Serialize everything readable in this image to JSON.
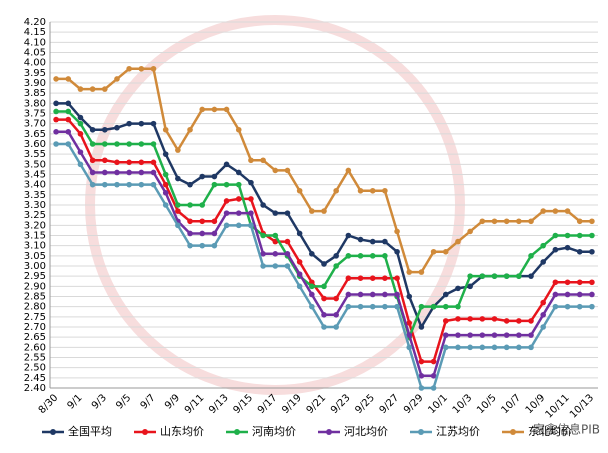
{
  "chart_data": {
    "type": "line",
    "categories": [
      "8/30",
      null,
      "9/1",
      null,
      "9/3",
      null,
      "9/5",
      null,
      "9/7",
      null,
      "9/9",
      null,
      "9/11",
      null,
      "9/13",
      null,
      "9/15",
      null,
      "9/17",
      null,
      "9/19",
      null,
      "9/21",
      null,
      "9/23",
      null,
      "9/25",
      null,
      "9/27",
      null,
      "9/29",
      null,
      "10/1",
      null,
      "10/3",
      null,
      "10/5",
      null,
      "10/7",
      null,
      "10/9",
      null,
      "10/11",
      null,
      "10/13"
    ],
    "series": [
      {
        "name": "全国平均",
        "color": "#1f3864",
        "values": [
          3.8,
          3.8,
          3.73,
          3.67,
          3.67,
          3.68,
          3.7,
          3.7,
          3.7,
          3.55,
          3.43,
          3.4,
          3.44,
          3.44,
          3.5,
          3.46,
          3.41,
          3.3,
          3.26,
          3.26,
          3.16,
          3.06,
          3.01,
          3.05,
          3.15,
          3.13,
          3.12,
          3.12,
          3.07,
          2.85,
          2.7,
          2.8,
          2.86,
          2.89,
          2.9,
          2.95,
          2.95,
          2.95,
          2.95,
          2.95,
          3.02,
          3.08,
          3.09,
          3.07,
          3.07
        ]
      },
      {
        "name": "山东均价",
        "color": "#e8141c",
        "values": [
          3.72,
          3.72,
          3.65,
          3.52,
          3.52,
          3.51,
          3.51,
          3.51,
          3.51,
          3.4,
          3.27,
          3.22,
          3.22,
          3.22,
          3.32,
          3.33,
          3.33,
          3.16,
          3.12,
          3.12,
          3.02,
          2.92,
          2.84,
          2.84,
          2.94,
          2.94,
          2.94,
          2.94,
          2.94,
          2.72,
          2.53,
          2.53,
          2.73,
          2.74,
          2.74,
          2.74,
          2.74,
          2.73,
          2.73,
          2.73,
          2.82,
          2.92,
          2.92,
          2.92,
          2.92
        ]
      },
      {
        "name": "河南均价",
        "color": "#1fb04a",
        "values": [
          3.76,
          3.76,
          3.7,
          3.6,
          3.6,
          3.6,
          3.6,
          3.6,
          3.6,
          3.45,
          3.3,
          3.3,
          3.3,
          3.4,
          3.4,
          3.4,
          3.2,
          3.15,
          3.15,
          3.05,
          2.95,
          2.9,
          2.9,
          3.0,
          3.05,
          3.05,
          3.05,
          3.05,
          2.85,
          2.65,
          2.8,
          2.8,
          2.8,
          2.8,
          2.95,
          2.95,
          2.95,
          2.95,
          2.95,
          3.05,
          3.1,
          3.15,
          3.15,
          3.15,
          3.15
        ]
      },
      {
        "name": "河北均价",
        "color": "#7030a0",
        "values": [
          3.66,
          3.66,
          3.56,
          3.46,
          3.46,
          3.46,
          3.46,
          3.46,
          3.46,
          3.36,
          3.22,
          3.16,
          3.16,
          3.16,
          3.26,
          3.26,
          3.26,
          3.06,
          3.06,
          3.06,
          2.96,
          2.86,
          2.76,
          2.76,
          2.86,
          2.86,
          2.86,
          2.86,
          2.86,
          2.66,
          2.46,
          2.46,
          2.66,
          2.66,
          2.66,
          2.66,
          2.66,
          2.66,
          2.66,
          2.66,
          2.76,
          2.86,
          2.86,
          2.86,
          2.86
        ]
      },
      {
        "name": "江苏均价",
        "color": "#5b9bb5",
        "values": [
          3.6,
          3.6,
          3.5,
          3.4,
          3.4,
          3.4,
          3.4,
          3.4,
          3.4,
          3.3,
          3.2,
          3.1,
          3.1,
          3.1,
          3.2,
          3.2,
          3.2,
          3.0,
          3.0,
          3.0,
          2.9,
          2.8,
          2.7,
          2.7,
          2.8,
          2.8,
          2.8,
          2.8,
          2.8,
          2.6,
          2.4,
          2.4,
          2.6,
          2.6,
          2.6,
          2.6,
          2.6,
          2.6,
          2.6,
          2.6,
          2.7,
          2.8,
          2.8,
          2.8,
          2.8
        ]
      },
      {
        "name": "东北均价",
        "color": "#d08a3a",
        "values": [
          3.92,
          3.92,
          3.87,
          3.87,
          3.87,
          3.92,
          3.97,
          3.97,
          3.97,
          3.67,
          3.57,
          3.67,
          3.77,
          3.77,
          3.77,
          3.67,
          3.52,
          3.52,
          3.47,
          3.47,
          3.37,
          3.27,
          3.27,
          3.37,
          3.47,
          3.37,
          3.37,
          3.37,
          3.17,
          2.97,
          2.97,
          3.07,
          3.07,
          3.12,
          3.17,
          3.22,
          3.22,
          3.22,
          3.22,
          3.22,
          3.27,
          3.27,
          3.27,
          3.22,
          3.22
        ]
      }
    ],
    "ylim": [
      2.4,
      4.2
    ],
    "yticks": [
      {
        "value": 2.4,
        "label": "2.40"
      },
      {
        "value": 2.45,
        "label": "2.45"
      },
      {
        "value": 2.5,
        "label": "2.50"
      },
      {
        "value": 2.55,
        "label": "2.55"
      },
      {
        "value": 2.6,
        "label": "2.60"
      },
      {
        "value": 2.65,
        "label": "2.65"
      },
      {
        "value": 2.7,
        "label": "2.70"
      },
      {
        "value": 2.75,
        "label": "2.75"
      },
      {
        "value": 2.8,
        "label": "2.80"
      },
      {
        "value": 2.85,
        "label": "2.85"
      },
      {
        "value": 2.9,
        "label": "2.90"
      },
      {
        "value": 2.95,
        "label": "2.95"
      },
      {
        "value": 3.0,
        "label": "3.00"
      },
      {
        "value": 3.05,
        "label": "3.05"
      },
      {
        "value": 3.1,
        "label": "3.10"
      },
      {
        "value": 3.15,
        "label": "3.15"
      },
      {
        "value": 3.2,
        "label": "3.20"
      },
      {
        "value": 3.25,
        "label": "3.25"
      },
      {
        "value": 3.3,
        "label": "3.30"
      },
      {
        "value": 3.35,
        "label": "3.35"
      },
      {
        "value": 3.4,
        "label": "3.40"
      },
      {
        "value": 3.45,
        "label": "3.45"
      },
      {
        "value": 3.5,
        "label": "3.50"
      },
      {
        "value": 3.55,
        "label": "3.55"
      },
      {
        "value": 3.6,
        "label": "3.60"
      },
      {
        "value": 3.65,
        "label": "3.65"
      },
      {
        "value": 3.7,
        "label": "3.70"
      },
      {
        "value": 3.75,
        "label": "3.75"
      },
      {
        "value": 3.8,
        "label": "3.80"
      },
      {
        "value": 3.85,
        "label": "3.85"
      },
      {
        "value": 3.9,
        "label": "3.90"
      },
      {
        "value": 3.95,
        "label": "3.95"
      },
      {
        "value": 4.0,
        "label": "4.00"
      },
      {
        "value": 4.05,
        "label": "4.05"
      },
      {
        "value": 4.1,
        "label": "4.10"
      },
      {
        "value": 4.15,
        "label": "4.15"
      },
      {
        "value": 4.2,
        "label": "4.20"
      }
    ],
    "grid": true,
    "legend": "bottom",
    "watermark": "家禽信息PIB"
  }
}
